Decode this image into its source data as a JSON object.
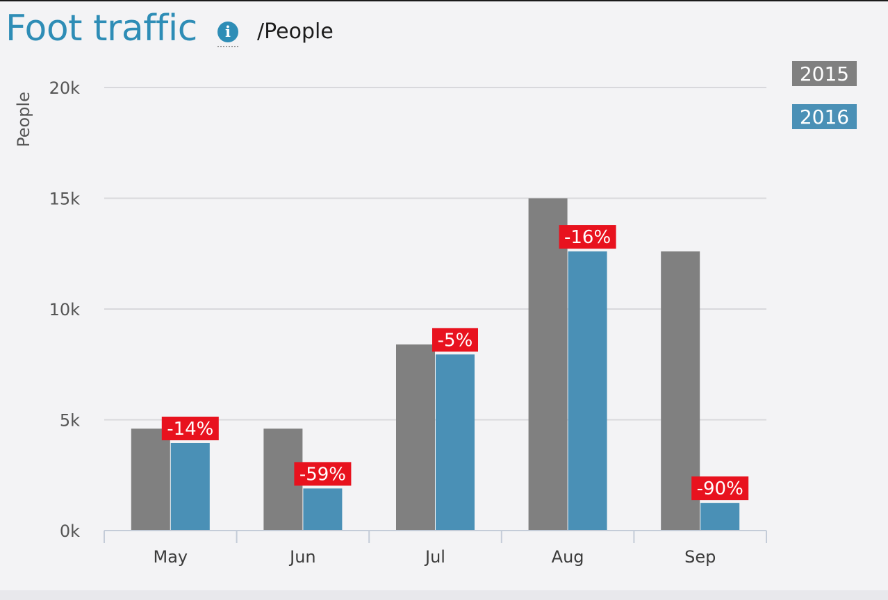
{
  "header": {
    "title": "Foot traffic",
    "info_icon": "info-icon",
    "info_glyph": "i",
    "unit_label": "/People"
  },
  "colors": {
    "series_2015": "#808080",
    "series_2016": "#4a90b6",
    "change_badge": "#e8121e",
    "title": "#2e8db6"
  },
  "chart_data": {
    "type": "bar",
    "title": "Foot traffic",
    "subtitle": "/People",
    "xlabel": "",
    "ylabel": "People",
    "categories": [
      "May",
      "Jun",
      "Jul",
      "Aug",
      "Sep"
    ],
    "ylim": [
      0,
      20000
    ],
    "y_ticks": [
      {
        "value": 0,
        "label": "0k"
      },
      {
        "value": 5000,
        "label": "5k"
      },
      {
        "value": 10000,
        "label": "10k"
      },
      {
        "value": 15000,
        "label": "15k"
      },
      {
        "value": 20000,
        "label": "20k"
      }
    ],
    "grid": true,
    "legend_position": "top-right",
    "series": [
      {
        "name": "2015",
        "color": "#808080",
        "values": [
          4600,
          4600,
          8400,
          15000,
          12600
        ]
      },
      {
        "name": "2016",
        "color": "#4a90b6",
        "values": [
          3950,
          1900,
          7950,
          12600,
          1250
        ]
      }
    ],
    "annotations": [
      "-14%",
      "-59%",
      "-5%",
      "-16%",
      "-90%"
    ]
  }
}
